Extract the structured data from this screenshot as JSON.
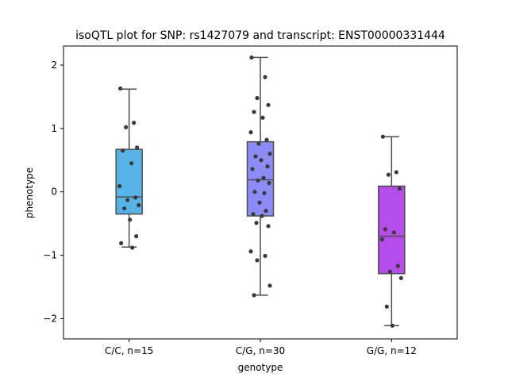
{
  "chart_data": {
    "type": "box",
    "title": "isoQTL plot for SNP: rs1427079 and transcript: ENST00000331444",
    "xlabel": "genotype",
    "ylabel": "phenotype",
    "ylim": [
      -2.32,
      2.3
    ],
    "yticks": [
      -2,
      -1,
      0,
      1,
      2
    ],
    "categories": [
      "C/C, n=15",
      "C/G, n=30",
      "G/G, n=12"
    ],
    "groups": [
      {
        "category": "C/C, n=15",
        "color": "#56b4e9",
        "box": {
          "whisker_low": -0.87,
          "q1": -0.35,
          "median": -0.08,
          "q3": 0.67,
          "whisker_high": 1.62
        },
        "points": [
          1.63,
          1.09,
          1.02,
          0.7,
          0.65,
          0.45,
          0.09,
          -0.09,
          -0.13,
          -0.21,
          -0.26,
          -0.44,
          -0.7,
          -0.81,
          -0.88
        ]
      },
      {
        "category": "C/G, n=30",
        "color": "#8c8cf7",
        "box": {
          "whisker_low": -1.63,
          "q1": -0.38,
          "median": 0.19,
          "q3": 0.79,
          "whisker_high": 2.12
        },
        "points": [
          2.12,
          1.81,
          1.48,
          1.37,
          1.26,
          1.17,
          0.94,
          0.82,
          0.76,
          0.6,
          0.56,
          0.5,
          0.4,
          0.36,
          0.22,
          0.18,
          0.14,
          0.0,
          -0.02,
          -0.17,
          -0.3,
          -0.35,
          -0.38,
          -0.49,
          -0.54,
          -0.94,
          -1.01,
          -1.08,
          -1.48,
          -1.63
        ]
      },
      {
        "category": "G/G, n=12",
        "color": "#b44de9",
        "box": {
          "whisker_low": -2.11,
          "q1": -1.29,
          "median": -0.7,
          "q3": 0.09,
          "whisker_high": 0.87
        },
        "points": [
          0.87,
          0.31,
          0.27,
          0.05,
          -0.59,
          -0.64,
          -0.75,
          -1.17,
          -1.26,
          -1.36,
          -1.81,
          -2.11
        ]
      }
    ]
  }
}
